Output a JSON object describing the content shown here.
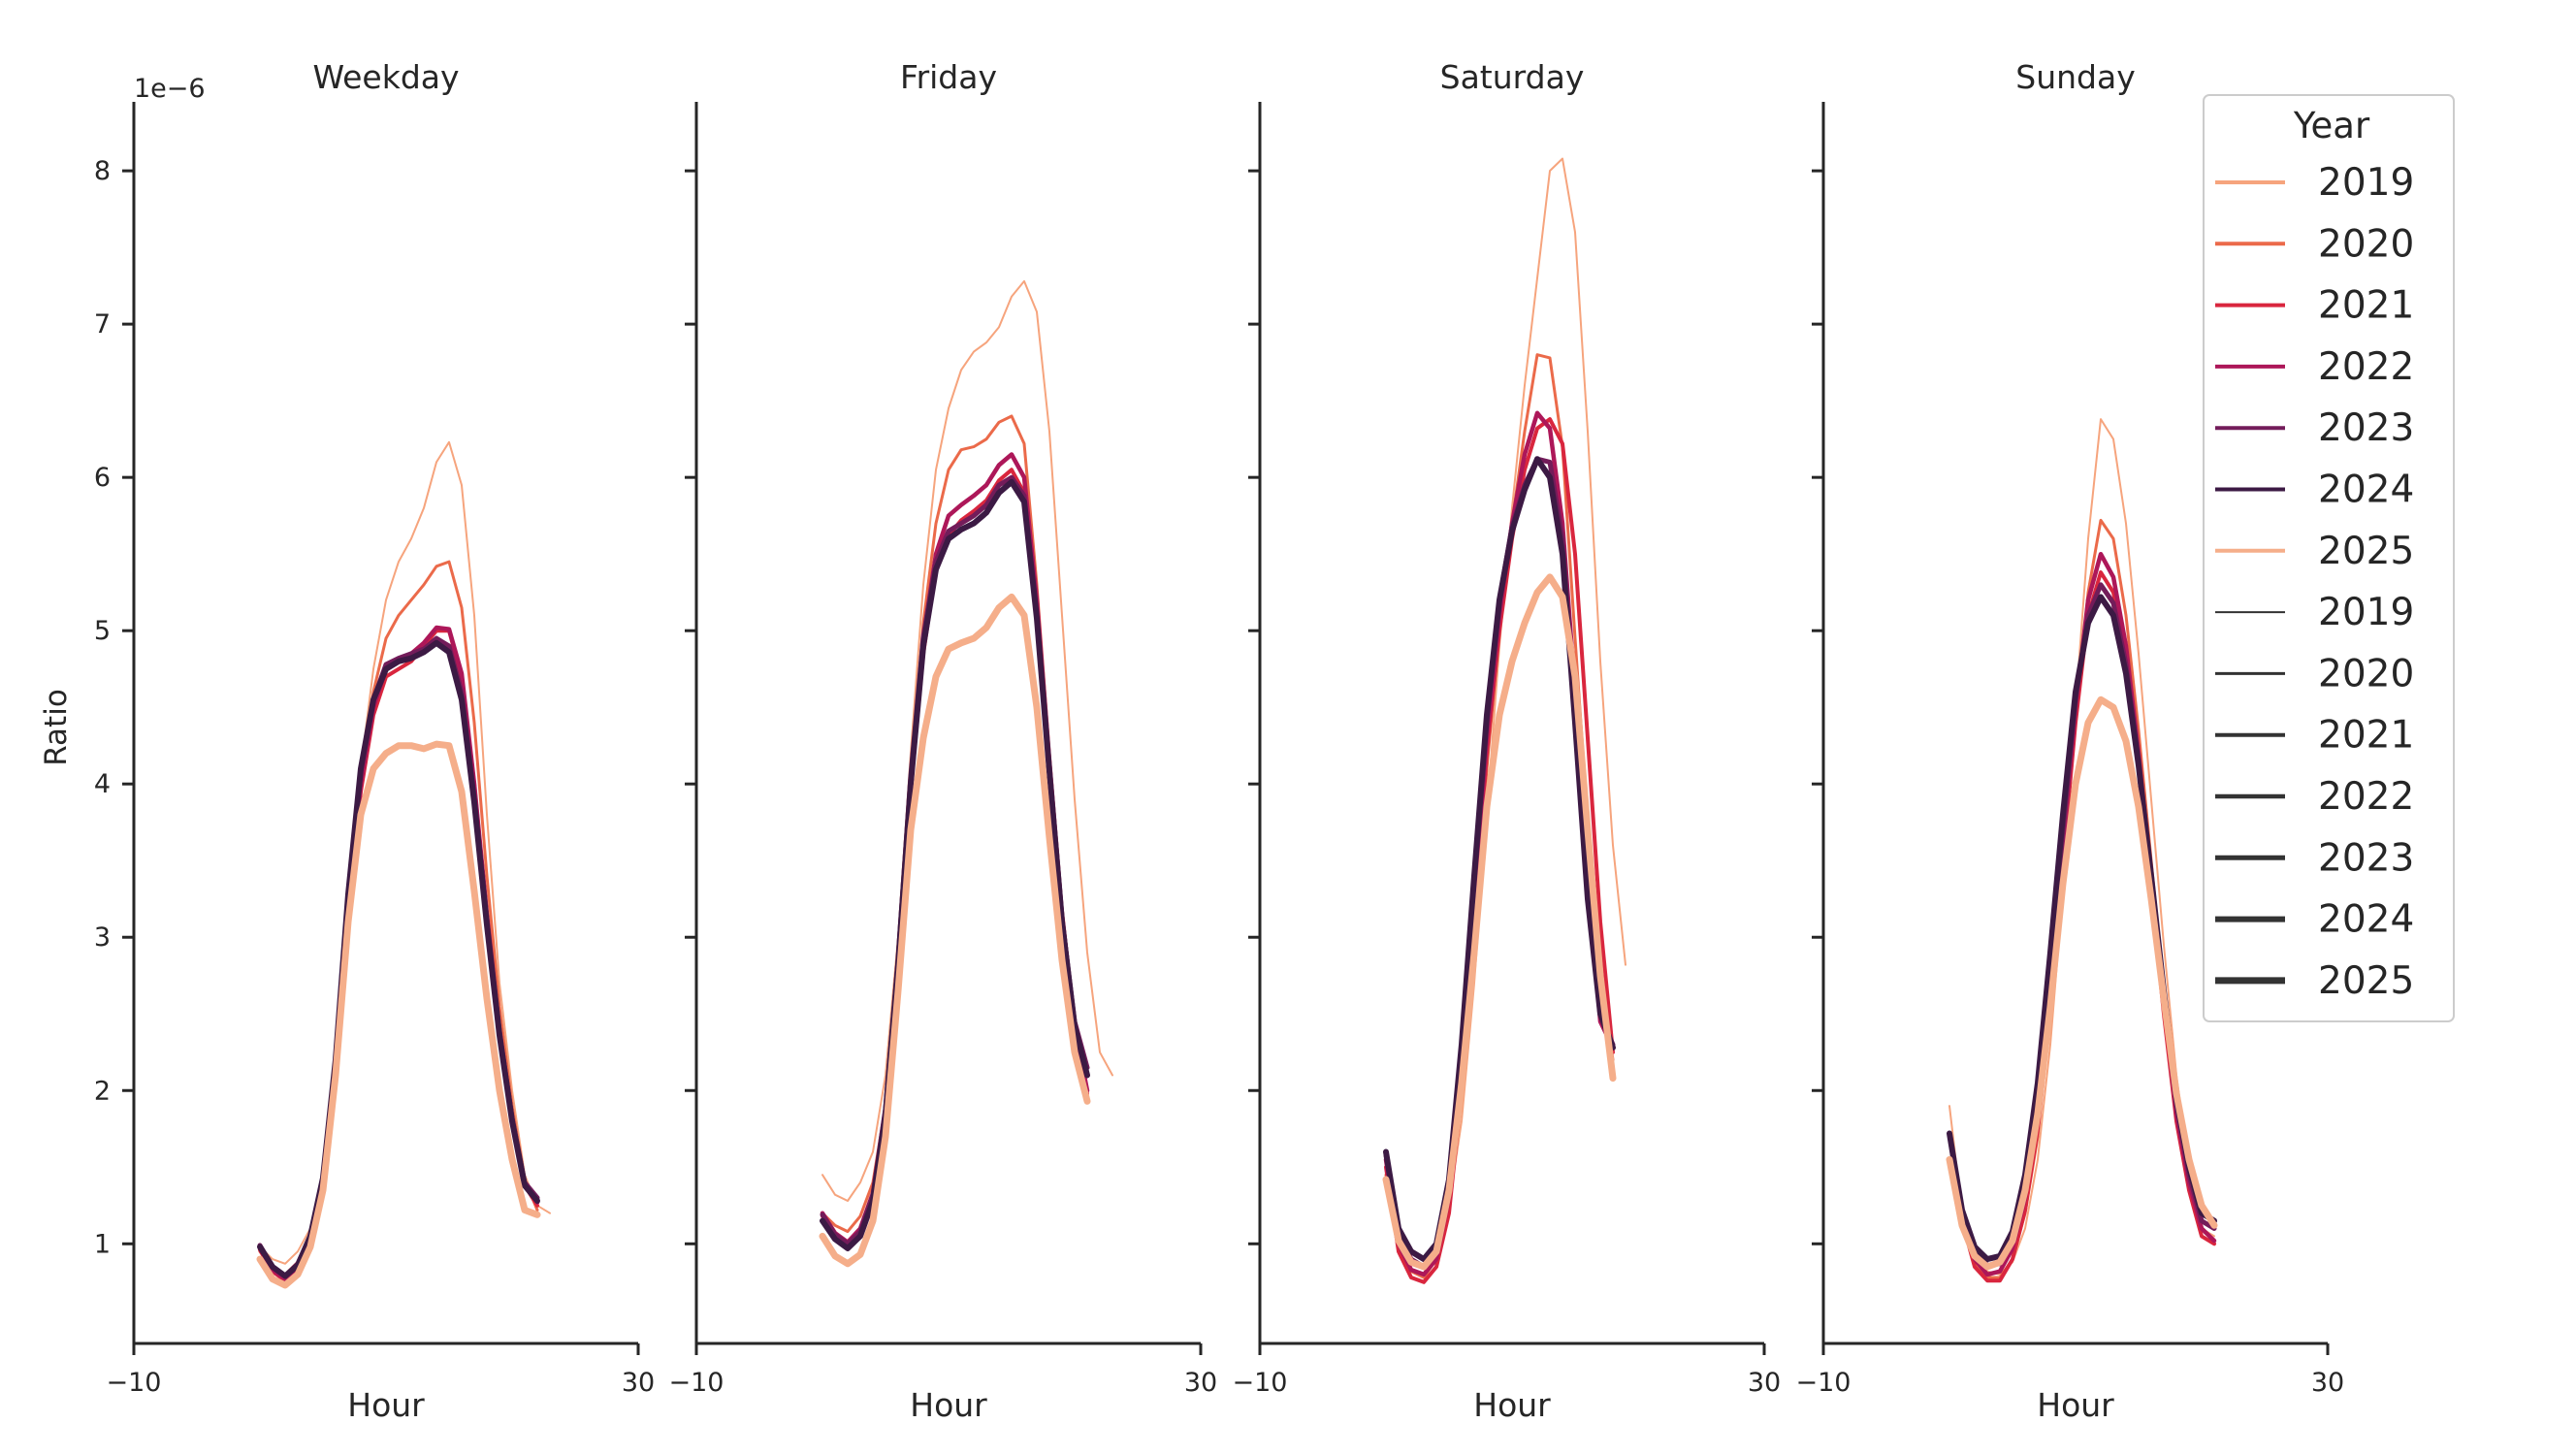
{
  "figure": {
    "ylabel": "Ratio",
    "xlabel": "Hour",
    "y_multiplier": "1e−6"
  },
  "legend": {
    "title": "Year",
    "placement": "upper-right",
    "color_entries": [
      "2019",
      "2020",
      "2021",
      "2022",
      "2023",
      "2024",
      "2025"
    ],
    "width_entries": [
      "2019",
      "2020",
      "2021",
      "2022",
      "2023",
      "2024",
      "2025"
    ]
  },
  "chart_data": {
    "type": "line",
    "xlim": [
      -10,
      30
    ],
    "ylim": [
      0.35,
      8.45
    ],
    "x_ticks": [
      -10,
      30
    ],
    "x_tick_labels": [
      "−10",
      "30"
    ],
    "y_ticks": [
      1,
      2,
      3,
      4,
      5,
      6,
      7,
      8
    ],
    "grid": false,
    "x": [
      0,
      1,
      2,
      3,
      4,
      5,
      6,
      7,
      8,
      9,
      10,
      11,
      12,
      13,
      14,
      15,
      16,
      17,
      18,
      19,
      20,
      21,
      22,
      23
    ],
    "series_style": {
      "2019": {
        "color": "#f6a47d",
        "width": 2.0
      },
      "2020": {
        "color": "#eb6a4a",
        "width": 3.0
      },
      "2021": {
        "color": "#d9263e",
        "width": 4.0
      },
      "2022": {
        "color": "#ad1759",
        "width": 4.5
      },
      "2023": {
        "color": "#731c5a",
        "width": 5.0
      },
      "2024": {
        "color": "#3c1a44",
        "width": 6.0
      },
      "2025": {
        "color": "#f5ae8a",
        "width": 7.0
      }
    },
    "panels": [
      {
        "title": "Weekday",
        "series": [
          {
            "name": "2019",
            "values": [
              0.98,
              0.9,
              0.87,
              0.95,
              1.1,
              1.45,
              2.2,
              3.2,
              4.1,
              4.75,
              5.2,
              5.45,
              5.6,
              5.8,
              6.1,
              6.23,
              5.95,
              5.1,
              3.8,
              2.7,
              2.0,
              1.45,
              1.25,
              1.2
            ]
          },
          {
            "name": "2020",
            "values": [
              0.95,
              0.84,
              0.8,
              0.88,
              1.05,
              1.4,
              2.15,
              3.15,
              4.05,
              4.6,
              4.95,
              5.1,
              5.2,
              5.3,
              5.42,
              5.45,
              5.15,
              4.4,
              3.4,
              2.55,
              1.9,
              1.42,
              1.22
            ]
          },
          {
            "name": "2021",
            "values": [
              0.96,
              0.82,
              0.76,
              0.84,
              1.02,
              1.38,
              2.12,
              3.12,
              3.95,
              4.45,
              4.7,
              4.75,
              4.8,
              4.9,
              5.0,
              5.0,
              4.7,
              4.0,
              3.15,
              2.4,
              1.82,
              1.38,
              1.25
            ]
          },
          {
            "name": "2022",
            "values": [
              0.97,
              0.83,
              0.77,
              0.85,
              1.03,
              1.4,
              2.14,
              3.18,
              4.0,
              4.5,
              4.75,
              4.8,
              4.85,
              4.92,
              5.02,
              5.01,
              4.72,
              4.0,
              3.15,
              2.4,
              1.83,
              1.39,
              1.27
            ]
          },
          {
            "name": "2023",
            "values": [
              0.99,
              0.85,
              0.79,
              0.87,
              1.05,
              1.43,
              2.18,
              3.25,
              4.08,
              4.55,
              4.78,
              4.82,
              4.85,
              4.88,
              4.95,
              4.9,
              4.6,
              3.92,
              3.1,
              2.38,
              1.82,
              1.4,
              1.3
            ]
          },
          {
            "name": "2024",
            "values": [
              0.98,
              0.85,
              0.79,
              0.86,
              1.05,
              1.43,
              2.2,
              3.28,
              4.1,
              4.55,
              4.75,
              4.8,
              4.82,
              4.86,
              4.92,
              4.86,
              4.55,
              3.88,
              3.08,
              2.36,
              1.8,
              1.38,
              1.28
            ]
          },
          {
            "name": "2025",
            "values": [
              0.9,
              0.77,
              0.73,
              0.8,
              0.98,
              1.35,
              2.1,
              3.1,
              3.8,
              4.1,
              4.2,
              4.25,
              4.25,
              4.23,
              4.26,
              4.25,
              3.95,
              3.3,
              2.6,
              2.0,
              1.55,
              1.22,
              1.19
            ]
          }
        ]
      },
      {
        "title": "Friday",
        "series": [
          {
            "name": "2019",
            "values": [
              1.45,
              1.32,
              1.28,
              1.4,
              1.6,
              2.1,
              3.0,
              4.2,
              5.3,
              6.05,
              6.45,
              6.7,
              6.82,
              6.88,
              6.98,
              7.18,
              7.28,
              7.08,
              6.3,
              5.1,
              3.9,
              2.9,
              2.25,
              2.1
            ]
          },
          {
            "name": "2020",
            "values": [
              1.2,
              1.12,
              1.08,
              1.18,
              1.4,
              1.9,
              2.85,
              4.0,
              5.05,
              5.7,
              6.05,
              6.18,
              6.2,
              6.25,
              6.36,
              6.4,
              6.22,
              5.3,
              4.2,
              3.2,
              2.45,
              2.0
            ]
          },
          {
            "name": "2021",
            "values": [
              1.18,
              1.05,
              0.99,
              1.07,
              1.3,
              1.85,
              2.8,
              3.95,
              4.85,
              5.4,
              5.62,
              5.72,
              5.78,
              5.85,
              5.98,
              6.05,
              5.9,
              5.1,
              4.1,
              3.1,
              2.4,
              1.98
            ]
          },
          {
            "name": "2022",
            "values": [
              1.2,
              1.07,
              1.01,
              1.1,
              1.33,
              1.88,
              2.85,
              4.02,
              4.95,
              5.5,
              5.75,
              5.82,
              5.88,
              5.95,
              6.08,
              6.15,
              6.0,
              5.2,
              4.15,
              3.15,
              2.42,
              2.0
            ]
          },
          {
            "name": "2023",
            "values": [
              1.19,
              1.06,
              1.0,
              1.08,
              1.32,
              1.88,
              2.86,
              4.05,
              4.96,
              5.45,
              5.65,
              5.7,
              5.75,
              5.82,
              5.95,
              6.0,
              5.88,
              5.1,
              4.1,
              3.12,
              2.45,
              2.15
            ]
          },
          {
            "name": "2024",
            "values": [
              1.15,
              1.03,
              0.97,
              1.05,
              1.28,
              1.84,
              2.82,
              4.0,
              4.9,
              5.4,
              5.6,
              5.66,
              5.7,
              5.77,
              5.9,
              5.97,
              5.84,
              5.08,
              4.08,
              3.1,
              2.42,
              2.1
            ]
          },
          {
            "name": "2025",
            "values": [
              1.05,
              0.92,
              0.87,
              0.93,
              1.15,
              1.7,
              2.65,
              3.7,
              4.3,
              4.7,
              4.88,
              4.92,
              4.95,
              5.02,
              5.15,
              5.22,
              5.1,
              4.5,
              3.65,
              2.85,
              2.25,
              1.93
            ]
          }
        ]
      },
      {
        "title": "Saturday",
        "series": [
          {
            "name": "2019",
            "values": [
              1.45,
              1.05,
              0.88,
              0.84,
              0.93,
              1.25,
              1.8,
              2.7,
              3.8,
              4.9,
              5.8,
              6.6,
              7.3,
              8.0,
              8.08,
              7.6,
              6.3,
              4.8,
              3.6,
              2.82
            ]
          },
          {
            "name": "2020",
            "values": [
              1.45,
              1.0,
              0.82,
              0.78,
              0.9,
              1.3,
              2.0,
              3.0,
              4.1,
              5.0,
              5.7,
              6.3,
              6.8,
              6.78,
              6.2,
              4.95,
              3.75,
              2.8,
              2.2
            ]
          },
          {
            "name": "2021",
            "values": [
              1.5,
              0.95,
              0.78,
              0.75,
              0.85,
              1.2,
              2.0,
              3.1,
              4.2,
              5.0,
              5.6,
              6.05,
              6.32,
              6.38,
              6.22,
              5.5,
              4.3,
              3.1,
              2.25
            ]
          },
          {
            "name": "2022",
            "values": [
              1.55,
              1.0,
              0.83,
              0.8,
              0.9,
              1.3,
              2.15,
              3.25,
              4.3,
              5.1,
              5.7,
              6.15,
              6.42,
              6.32,
              5.7,
              4.6,
              3.4,
              2.45,
              2.28
            ]
          },
          {
            "name": "2023",
            "values": [
              1.58,
              1.05,
              0.9,
              0.85,
              0.96,
              1.4,
              2.25,
              3.35,
              4.4,
              5.2,
              5.68,
              5.95,
              6.12,
              6.1,
              5.6,
              4.5,
              3.3,
              2.5,
              2.3
            ]
          },
          {
            "name": "2024",
            "values": [
              1.6,
              1.1,
              0.95,
              0.9,
              1.0,
              1.42,
              2.3,
              3.4,
              4.45,
              5.2,
              5.65,
              5.92,
              6.12,
              6.0,
              5.5,
              4.4,
              3.25,
              2.5,
              2.28
            ]
          },
          {
            "name": "2025",
            "values": [
              1.42,
              1.02,
              0.88,
              0.85,
              0.95,
              1.35,
              2.05,
              2.9,
              3.85,
              4.45,
              4.8,
              5.05,
              5.25,
              5.35,
              5.22,
              4.7,
              3.7,
              2.75,
              2.08
            ]
          }
        ]
      },
      {
        "title": "Sunday",
        "series": [
          {
            "name": "2019",
            "values": [
              1.9,
              1.2,
              0.95,
              0.82,
              0.8,
              0.88,
              1.1,
              1.55,
              2.3,
              3.3,
              4.5,
              5.6,
              6.38,
              6.25,
              5.7,
              4.85,
              3.9,
              2.95,
              2.1,
              1.5,
              1.1,
              1.05
            ]
          },
          {
            "name": "2020",
            "values": [
              1.7,
              1.15,
              0.88,
              0.78,
              0.78,
              0.9,
              1.2,
              1.7,
              2.5,
              3.45,
              4.4,
              5.25,
              5.72,
              5.6,
              5.1,
              4.35,
              3.5,
              2.65,
              1.9,
              1.4,
              1.1,
              1.02
            ]
          },
          {
            "name": "2021",
            "values": [
              1.7,
              1.15,
              0.85,
              0.76,
              0.76,
              0.9,
              1.22,
              1.75,
              2.55,
              3.5,
              4.4,
              5.1,
              5.38,
              5.25,
              4.8,
              4.1,
              3.3,
              2.5,
              1.8,
              1.35,
              1.05,
              1.0
            ]
          },
          {
            "name": "2022",
            "values": [
              1.72,
              1.18,
              0.9,
              0.8,
              0.82,
              0.97,
              1.3,
              1.85,
              2.65,
              3.6,
              4.5,
              5.2,
              5.5,
              5.35,
              4.9,
              4.2,
              3.4,
              2.6,
              1.85,
              1.4,
              1.1,
              1.02
            ]
          },
          {
            "name": "2023",
            "values": [
              1.72,
              1.2,
              0.95,
              0.86,
              0.87,
              1.02,
              1.38,
              1.95,
              2.78,
              3.7,
              4.55,
              5.1,
              5.3,
              5.18,
              4.78,
              4.15,
              3.38,
              2.62,
              1.9,
              1.45,
              1.15,
              1.1
            ]
          },
          {
            "name": "2024",
            "values": [
              1.72,
              1.22,
              0.98,
              0.9,
              0.92,
              1.08,
              1.45,
              2.05,
              2.9,
              3.8,
              4.6,
              5.05,
              5.22,
              5.1,
              4.72,
              4.12,
              3.4,
              2.65,
              1.95,
              1.5,
              1.2,
              1.15
            ]
          },
          {
            "name": "2025",
            "values": [
              1.55,
              1.12,
              0.92,
              0.85,
              0.88,
              1.02,
              1.35,
              1.85,
              2.55,
              3.35,
              4.0,
              4.4,
              4.55,
              4.5,
              4.28,
              3.85,
              3.25,
              2.6,
              1.98,
              1.55,
              1.25,
              1.12
            ]
          }
        ]
      }
    ]
  }
}
